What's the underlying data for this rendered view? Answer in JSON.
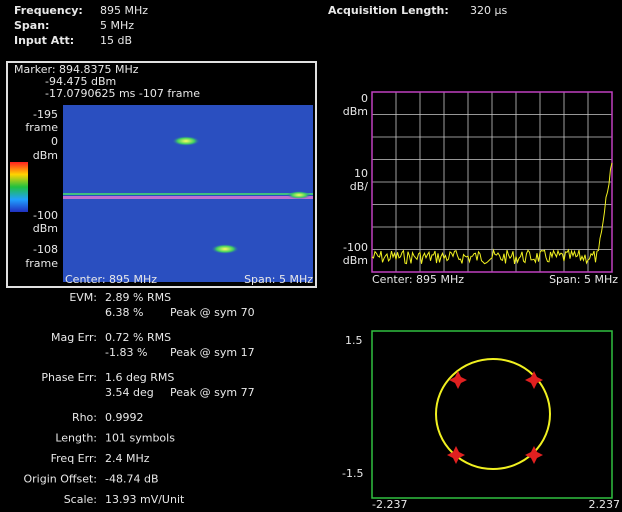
{
  "header": {
    "frequency_label": "Frequency:",
    "frequency": "895 MHz",
    "span_label": "Span:",
    "span": "5 MHz",
    "input_att_label": "Input Att:",
    "input_att": "15 dB",
    "acquisition_label": "Acquisition Length:",
    "acquisition": "320 µs"
  },
  "spectrogram": {
    "marker": [
      "Marker: 894.8375 MHz",
      "-94.475 dBm",
      "-17.0790625 ms  -107 frame"
    ],
    "axis_labels": [
      "-195",
      "frame",
      "0",
      "dBm",
      "-100",
      "dBm",
      "-108",
      "frame"
    ],
    "center": "Center: 895 MHz",
    "span": "Span: 5 MHz"
  },
  "spectrum": {
    "axis_labels": [
      "0",
      "dBm",
      "10",
      "dB/",
      "-100",
      "dBm"
    ],
    "center": "Center: 895 MHz",
    "span": "Span: 5 MHz"
  },
  "measurements": [
    {
      "label": "EVM:",
      "lines": [
        "2.89 % RMS",
        "6.38 %"
      ],
      "peak": "Peak @ sym 70"
    },
    {
      "label": "Mag Err:",
      "lines": [
        "0.72 % RMS",
        "-1.83 %"
      ],
      "peak": "Peak @ sym 17"
    },
    {
      "label": "Phase Err:",
      "lines": [
        "1.6  deg RMS",
        "3.54 deg"
      ],
      "peak": "Peak @ sym 77"
    },
    {
      "label": "Rho:",
      "lines": [
        "0.9992"
      ]
    },
    {
      "label": "Length:",
      "lines": [
        "101 symbols"
      ]
    },
    {
      "label": "Freq Err:",
      "lines": [
        "2.4    MHz"
      ]
    },
    {
      "label": "Origin Offset:",
      "lines": [
        "-48.74 dB"
      ]
    },
    {
      "label": "Scale:",
      "lines": [
        "13.93  mV/Unit"
      ]
    }
  ],
  "constellation": {
    "y_top": "1.5",
    "y_bottom": "-1.5",
    "x_left": "-2.237",
    "x_right": "2.237"
  }
}
